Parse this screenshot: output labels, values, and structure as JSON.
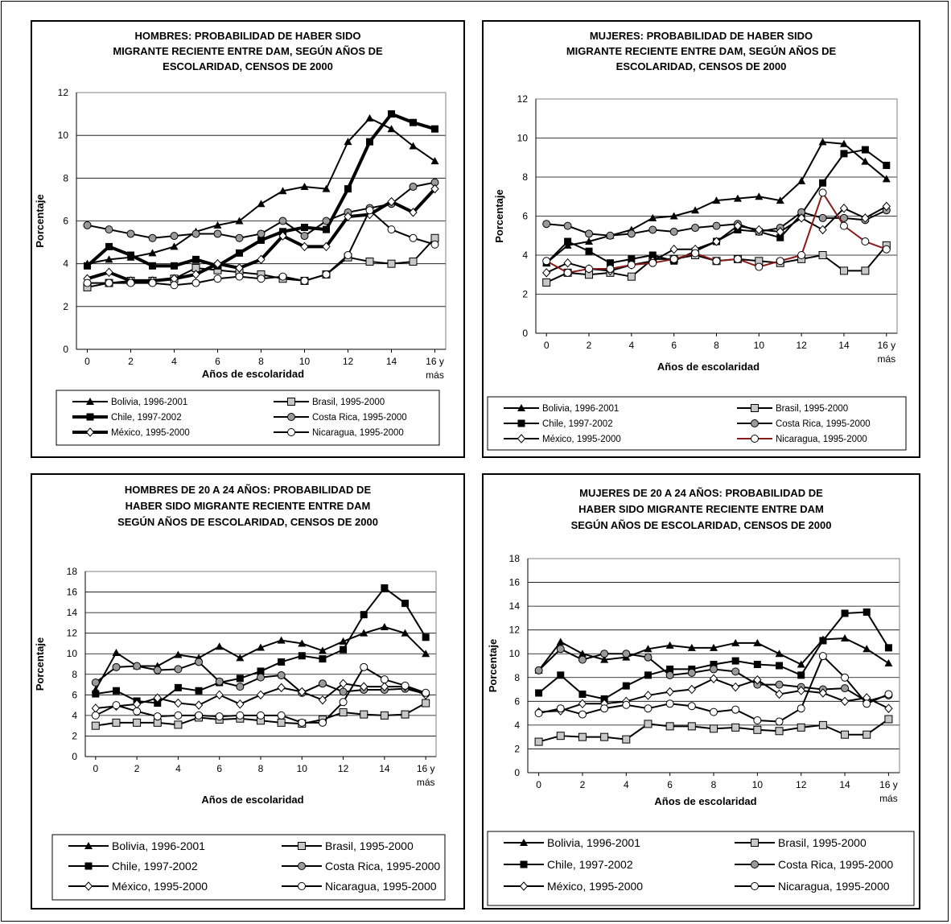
{
  "chart_data": [
    {
      "type": "line",
      "title": "HOMBRES: PROBABILIDAD DE HABER SIDO MIGRANTE RECIENTE ENTRE DAM, SEGÚN AÑOS DE ESCOLARIDAD, CENSOS DE 2000",
      "title_lines": [
        "HOMBRES: PROBABILIDAD DE HABER SIDO",
        "MIGRANTE RECIENTE ENTRE DAM, SEGÚN AÑOS DE",
        "ESCOLARIDAD, CENSOS DE 2000"
      ],
      "xlabel": "Años de escolaridad",
      "ylabel": "Porcentaje",
      "x": [
        0,
        1,
        2,
        3,
        4,
        5,
        6,
        7,
        8,
        9,
        10,
        11,
        12,
        13,
        14,
        15,
        16
      ],
      "xticks": [
        "0",
        "2",
        "4",
        "6",
        "8",
        "10",
        "12",
        "14",
        "16 y"
      ],
      "xtick_extra": "más",
      "ylim": [
        0,
        12
      ],
      "yticks": [
        "0",
        "2",
        "4",
        "6",
        "8",
        "10",
        "12"
      ],
      "grid": true,
      "series": [
        {
          "name": "Bolivia, 1996-2001",
          "marker": "triangle",
          "color": "#000000",
          "values": [
            4.0,
            4.2,
            4.3,
            4.5,
            4.8,
            5.5,
            5.8,
            6.0,
            6.8,
            7.4,
            7.6,
            7.5,
            9.7,
            10.8,
            10.3,
            9.5,
            8.8
          ]
        },
        {
          "name": "Brasil, 1995-2000",
          "marker": "square-open",
          "color": "#000000",
          "values": [
            2.9,
            3.1,
            3.2,
            3.2,
            3.3,
            3.8,
            3.7,
            3.6,
            3.5,
            3.3,
            3.2,
            3.5,
            4.3,
            4.1,
            4.0,
            4.1,
            5.2
          ]
        },
        {
          "name": "Chile, 1997-2002",
          "marker": "square",
          "color": "#000000",
          "bold": true,
          "values": [
            3.9,
            4.8,
            4.4,
            3.9,
            3.9,
            4.2,
            3.9,
            4.5,
            5.1,
            5.5,
            5.7,
            5.6,
            7.5,
            9.7,
            11.0,
            10.6,
            10.3
          ]
        },
        {
          "name": "Costa Rica, 1995-2000",
          "marker": "circle-gray",
          "color": "#000000",
          "values": [
            5.8,
            5.6,
            5.4,
            5.2,
            5.3,
            5.4,
            5.4,
            5.2,
            5.4,
            6.0,
            5.3,
            6.0,
            6.4,
            6.6,
            6.8,
            7.6,
            7.8
          ]
        },
        {
          "name": "México, 1995-2000",
          "marker": "diamond",
          "color": "#000000",
          "bold": true,
          "values": [
            3.3,
            3.6,
            3.2,
            3.2,
            3.3,
            3.5,
            4.0,
            3.8,
            4.2,
            5.3,
            4.8,
            4.8,
            6.2,
            6.3,
            6.9,
            6.4,
            7.5
          ]
        },
        {
          "name": "Nicaragua, 1995-2000",
          "marker": "circle-open",
          "color": "#000000",
          "values": [
            3.1,
            3.1,
            3.1,
            3.1,
            3.0,
            3.1,
            3.3,
            3.4,
            3.3,
            3.4,
            3.2,
            3.5,
            4.4,
            6.5,
            5.6,
            5.2,
            4.9
          ]
        }
      ]
    },
    {
      "type": "line",
      "title": "MUJERES: PROBABILIDAD DE HABER SIDO MIGRANTE RECIENTE ENTRE DAM, SEGÚN AÑOS DE ESCOLARIDAD, CENSOS DE 2000",
      "title_lines": [
        "MUJERES: PROBABILIDAD DE HABER SIDO",
        "MIGRANTE RECIENTE ENTRE DAM, SEGÚN AÑOS DE",
        "ESCOLARIDAD, CENSOS DE 2000"
      ],
      "xlabel": "Años de escolaridad",
      "ylabel": "Porcentaje",
      "x": [
        0,
        1,
        2,
        3,
        4,
        5,
        6,
        7,
        8,
        9,
        10,
        11,
        12,
        13,
        14,
        15,
        16
      ],
      "xticks": [
        "0",
        "2",
        "4",
        "6",
        "8",
        "10",
        "12",
        "14",
        "16 y"
      ],
      "xtick_extra": "más",
      "ylim": [
        0,
        12
      ],
      "yticks": [
        "0",
        "2",
        "4",
        "6",
        "8",
        "10",
        "12"
      ],
      "grid": true,
      "series": [
        {
          "name": "Bolivia, 1996-2001",
          "marker": "triangle",
          "color": "#000000",
          "values": [
            3.6,
            4.5,
            4.7,
            5.0,
            5.3,
            5.9,
            6.0,
            6.3,
            6.8,
            6.9,
            7.0,
            6.8,
            7.8,
            9.8,
            9.7,
            8.8,
            7.9
          ]
        },
        {
          "name": "Brasil, 1995-2000",
          "marker": "square-open",
          "color": "#000000",
          "values": [
            2.6,
            3.1,
            3.0,
            3.1,
            2.9,
            3.8,
            3.8,
            4.0,
            3.7,
            3.8,
            3.7,
            3.6,
            3.8,
            4.0,
            3.2,
            3.2,
            4.5
          ]
        },
        {
          "name": "Chile, 1997-2002",
          "marker": "square",
          "color": "#000000",
          "values": [
            3.6,
            4.7,
            4.2,
            3.6,
            3.8,
            4.0,
            3.7,
            4.2,
            4.7,
            5.3,
            5.2,
            4.9,
            6.1,
            7.7,
            9.2,
            9.4,
            8.6
          ]
        },
        {
          "name": "Costa Rica, 1995-2000",
          "marker": "circle-gray",
          "color": "#000000",
          "values": [
            5.6,
            5.5,
            5.1,
            5.0,
            5.1,
            5.3,
            5.2,
            5.4,
            5.5,
            5.6,
            5.2,
            5.4,
            6.2,
            5.9,
            5.9,
            5.8,
            6.3
          ]
        },
        {
          "name": "México, 1995-2000",
          "marker": "diamond",
          "color": "#000000",
          "values": [
            3.1,
            3.6,
            3.3,
            3.2,
            3.5,
            3.7,
            4.3,
            4.3,
            4.7,
            5.5,
            5.3,
            5.2,
            5.9,
            5.3,
            6.4,
            5.9,
            6.5
          ]
        },
        {
          "name": "Nicaragua, 1995-2000",
          "marker": "circle-open",
          "color": "#8b1a1a",
          "values": [
            3.7,
            3.1,
            3.3,
            3.3,
            3.5,
            3.6,
            3.8,
            4.1,
            3.7,
            3.8,
            3.4,
            3.7,
            4.0,
            7.2,
            5.5,
            4.7,
            4.3
          ]
        }
      ]
    },
    {
      "type": "line",
      "title": "HOMBRES DE 20 A 24 AÑOS: PROBABILIDAD DE HABER SIDO MIGRANTE RECIENTE ENTRE DAM SEGÚN AÑOS DE ESCOLARIDAD, CENSOS DE 2000",
      "title_lines": [
        "HOMBRES DE 20 A 24 AÑOS: PROBABILIDAD DE",
        "HABER SIDO MIGRANTE RECIENTE ENTRE DAM",
        "SEGÚN AÑOS DE ESCOLARIDAD, CENSOS DE 2000"
      ],
      "xlabel": "Años de escolaridad",
      "ylabel": "Porcentaje",
      "x": [
        0,
        1,
        2,
        3,
        4,
        5,
        6,
        7,
        8,
        9,
        10,
        11,
        12,
        13,
        14,
        15,
        16
      ],
      "xticks": [
        "0",
        "2",
        "4",
        "6",
        "8",
        "10",
        "12",
        "14",
        "16 y"
      ],
      "xtick_extra": "más",
      "ylim": [
        0,
        18
      ],
      "yticks": [
        "0",
        "2",
        "4",
        "6",
        "8",
        "10",
        "12",
        "14",
        "16",
        "18"
      ],
      "grid": true,
      "series": [
        {
          "name": "Bolivia, 1996-2001",
          "marker": "triangle",
          "color": "#000000",
          "values": [
            6.5,
            10.1,
            8.8,
            8.8,
            9.9,
            9.6,
            10.7,
            9.6,
            10.6,
            11.3,
            11.0,
            10.3,
            11.2,
            12.0,
            12.6,
            12.0,
            10.0
          ]
        },
        {
          "name": "Brasil, 1995-2000",
          "marker": "square-open",
          "color": "#000000",
          "values": [
            3.0,
            3.3,
            3.3,
            3.3,
            3.1,
            3.8,
            3.6,
            3.7,
            3.5,
            3.3,
            3.2,
            3.6,
            4.3,
            4.1,
            4.0,
            4.1,
            5.2
          ]
        },
        {
          "name": "Chile, 1997-2002",
          "marker": "square",
          "color": "#000000",
          "values": [
            6.1,
            6.4,
            5.4,
            5.2,
            6.7,
            6.4,
            7.2,
            7.6,
            8.3,
            9.2,
            9.8,
            9.5,
            10.4,
            13.8,
            16.4,
            14.9,
            11.6
          ]
        },
        {
          "name": "Costa Rica, 1995-2000",
          "marker": "circle-gray",
          "color": "#000000",
          "values": [
            7.2,
            8.7,
            8.8,
            8.4,
            8.5,
            9.2,
            7.3,
            6.8,
            7.7,
            7.9,
            6.2,
            7.1,
            6.3,
            6.5,
            6.5,
            6.6,
            6.1
          ]
        },
        {
          "name": "México, 1995-2000",
          "marker": "diamond",
          "color": "#000000",
          "values": [
            4.7,
            4.9,
            5.1,
            5.7,
            5.2,
            5.0,
            6.0,
            5.1,
            6.0,
            6.7,
            6.3,
            5.5,
            7.1,
            6.8,
            6.8,
            6.8,
            6.0
          ]
        },
        {
          "name": "Nicaragua, 1995-2000",
          "marker": "circle-open",
          "color": "#000000",
          "values": [
            4.0,
            5.0,
            4.4,
            3.9,
            4.0,
            4.0,
            3.9,
            4.0,
            4.0,
            4.0,
            3.3,
            3.3,
            5.3,
            8.7,
            7.5,
            6.9,
            6.2
          ]
        }
      ]
    },
    {
      "type": "line",
      "title": "MUJERES DE 20 A 24 AÑOS: PROBABILIDAD DE HABER SIDO MIGRANTE RECIENTE ENTRE DAM SEGÚN AÑOS DE ESCOLARIDAD, CENSOS DE 2000",
      "title_lines": [
        "MUJERES DE 20 A 24 AÑOS: PROBABILIDAD DE",
        "HABER SIDO MIGRANTE RECIENTE ENTRE DAM",
        "SEGÚN AÑOS DE ESCOLARIDAD, CENSOS DE 2000"
      ],
      "xlabel": "Años de escolaridad",
      "ylabel": "Porcentaje",
      "x": [
        0,
        1,
        2,
        3,
        4,
        5,
        6,
        7,
        8,
        9,
        10,
        11,
        12,
        13,
        14,
        15,
        16
      ],
      "xticks": [
        "0",
        "2",
        "4",
        "6",
        "8",
        "10",
        "12",
        "14",
        "16 y"
      ],
      "xtick_extra": "más",
      "ylim": [
        0,
        18
      ],
      "yticks": [
        "0",
        "2",
        "4",
        "6",
        "8",
        "10",
        "12",
        "14",
        "16",
        "18"
      ],
      "grid": true,
      "series": [
        {
          "name": "Bolivia, 1996-2001",
          "marker": "triangle",
          "color": "#000000",
          "values": [
            8.6,
            11.0,
            10.0,
            9.5,
            9.7,
            10.4,
            10.7,
            10.5,
            10.5,
            10.9,
            10.9,
            10.0,
            9.1,
            11.2,
            11.3,
            10.4,
            9.2
          ]
        },
        {
          "name": "Brasil, 1995-2000",
          "marker": "square-open",
          "color": "#000000",
          "values": [
            2.6,
            3.1,
            3.0,
            3.0,
            2.8,
            4.1,
            3.9,
            3.9,
            3.7,
            3.8,
            3.6,
            3.5,
            3.8,
            4.0,
            3.2,
            3.2,
            4.5
          ]
        },
        {
          "name": "Chile, 1997-2002",
          "marker": "square",
          "color": "#000000",
          "values": [
            6.7,
            8.2,
            6.6,
            6.2,
            7.3,
            8.2,
            8.7,
            8.7,
            9.1,
            9.4,
            9.1,
            9.0,
            8.2,
            11.1,
            13.4,
            13.5,
            10.5
          ]
        },
        {
          "name": "Costa Rica, 1995-2000",
          "marker": "circle-gray",
          "color": "#000000",
          "values": [
            8.6,
            10.4,
            9.5,
            10.0,
            10.0,
            9.7,
            8.2,
            8.4,
            8.7,
            8.5,
            7.4,
            7.4,
            7.2,
            7.0,
            7.1,
            6.0,
            6.5
          ]
        },
        {
          "name": "México, 1995-2000",
          "marker": "diamond",
          "color": "#000000",
          "values": [
            5.1,
            5.2,
            5.8,
            5.8,
            6.0,
            6.5,
            6.8,
            7.0,
            7.9,
            7.2,
            7.8,
            6.6,
            6.9,
            6.7,
            6.0,
            6.3,
            5.4
          ]
        },
        {
          "name": "Nicaragua, 1995-2000",
          "marker": "circle-open",
          "color": "#000000",
          "values": [
            5.0,
            5.4,
            4.9,
            5.4,
            5.7,
            5.4,
            5.8,
            5.6,
            5.1,
            5.3,
            4.4,
            4.3,
            5.4,
            9.8,
            8.0,
            5.8,
            6.6
          ]
        }
      ]
    }
  ]
}
